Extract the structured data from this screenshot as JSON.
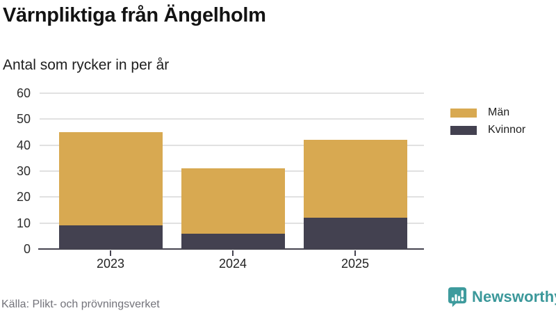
{
  "header": {
    "title": "Värnpliktiga från Ängelholm",
    "subtitle": "Antal som rycker in per år"
  },
  "chart_data": {
    "type": "bar",
    "stacked": true,
    "title": "Värnpliktiga från Ängelholm",
    "subtitle": "Antal som rycker in per år",
    "categories": [
      "2023",
      "2024",
      "2025"
    ],
    "series": [
      {
        "name": "Kvinnor",
        "color": "#434150",
        "values": [
          9,
          6,
          12
        ]
      },
      {
        "name": "Män",
        "color": "#d8a951",
        "values": [
          36,
          25,
          30
        ]
      }
    ],
    "totals": [
      45,
      31,
      42
    ],
    "xlabel": "",
    "ylabel": "",
    "ylim": [
      0,
      60
    ],
    "yticks": [
      0,
      10,
      20,
      30,
      40,
      50,
      60
    ],
    "grid": "horizontal",
    "legend_position": "right",
    "legend_order": [
      "Män",
      "Kvinnor"
    ],
    "source": "Källa: Plikt- och prövningsverket"
  },
  "footer": {
    "brand": "Newsworthy"
  },
  "colors": {
    "men": "#d8a951",
    "women": "#434150",
    "brand_teal": "#3b989a",
    "gridline": "#e1e1e1",
    "axis": "#45434f",
    "muted_text": "#73737a"
  }
}
